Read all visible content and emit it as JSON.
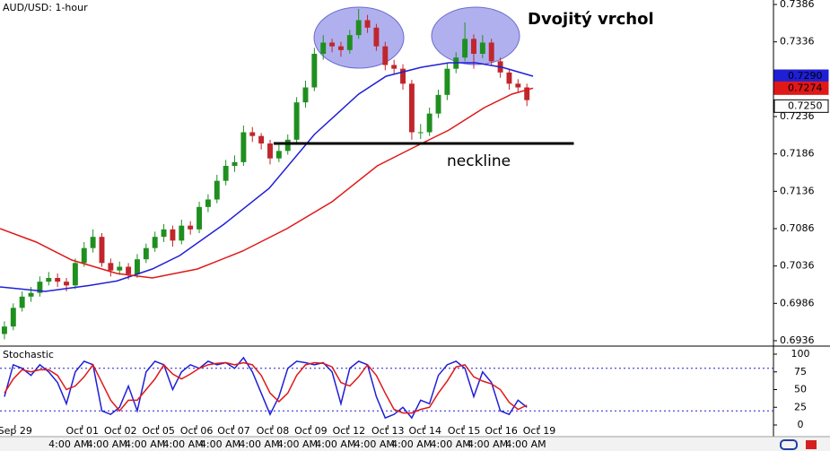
{
  "chart_data": [
    {
      "type": "candlestick",
      "title": "AUD/USD: 1-hour",
      "annotations": [
        "Dvojitý vrchol",
        "neckline"
      ],
      "neckline": {
        "x": [
          30.4,
          64.3
        ],
        "value": 0.72
      },
      "up_color": "#1f8f1f",
      "down_color": "#c0262b",
      "xlim": [
        -0.5,
        60.5
      ],
      "ylim": [
        0.6936,
        0.7386
      ],
      "yticks": [
        0.7386,
        0.7336,
        0.7236,
        0.7186,
        0.7136,
        0.7086,
        0.7036,
        0.6986,
        0.6936
      ],
      "xticks": [
        {
          "value": 1.2,
          "label": "Sep 29"
        },
        {
          "value": 8.8,
          "label": "Oct 01"
        },
        {
          "value": 13.1,
          "label": "Oct 02"
        },
        {
          "value": 17.4,
          "label": "Oct 05"
        },
        {
          "value": 21.7,
          "label": "Oct 06"
        },
        {
          "value": 25.9,
          "label": "Oct 07"
        },
        {
          "value": 30.3,
          "label": "Oct 08"
        },
        {
          "value": 34.6,
          "label": "Oct 09"
        },
        {
          "value": 38.9,
          "label": "Oct 12"
        },
        {
          "value": 43.3,
          "label": "Oct 13"
        },
        {
          "value": 47.5,
          "label": "Oct 14"
        },
        {
          "value": 51.9,
          "label": "Oct 15"
        },
        {
          "value": 56.1,
          "label": "Oct 16"
        },
        {
          "value": 60.4,
          "label": "Oct 19"
        }
      ],
      "bottom_labels": [
        "4:00 AM",
        "4:00 AM",
        "4:00 AM",
        "4:00 AM",
        "4:00 AM",
        "4:00 AM",
        "4:00 AM",
        "4:00 AM",
        "4:00 AM",
        "4:00 AM",
        "4:00 AM",
        "4:00 AM",
        "4:00 AM"
      ],
      "price_labels": [
        {
          "value": 0.729,
          "label": "0.7290",
          "color": "#1f1fd6"
        },
        {
          "value": 0.7274,
          "label": "0.7274",
          "color": "#e01818"
        },
        {
          "value": 0.725,
          "label": "0.7250",
          "color": "#000000"
        }
      ],
      "candles": [
        [
          0.6945,
          0.6962,
          0.6938,
          0.6955
        ],
        [
          0.6955,
          0.6986,
          0.695,
          0.698
        ],
        [
          0.698,
          0.7002,
          0.6975,
          0.6995
        ],
        [
          0.6995,
          0.7008,
          0.6988,
          0.7
        ],
        [
          0.7,
          0.7022,
          0.6995,
          0.7015
        ],
        [
          0.7015,
          0.7028,
          0.701,
          0.702
        ],
        [
          0.702,
          0.7026,
          0.7008,
          0.7015
        ],
        [
          0.7015,
          0.702,
          0.7002,
          0.701
        ],
        [
          0.701,
          0.7046,
          0.7005,
          0.704
        ],
        [
          0.704,
          0.7068,
          0.7035,
          0.706
        ],
        [
          0.706,
          0.7085,
          0.7054,
          0.7075
        ],
        [
          0.7075,
          0.708,
          0.7035,
          0.704
        ],
        [
          0.704,
          0.7046,
          0.7022,
          0.703
        ],
        [
          0.703,
          0.7042,
          0.7024,
          0.7035
        ],
        [
          0.7035,
          0.704,
          0.7018,
          0.7025
        ],
        [
          0.7025,
          0.7052,
          0.702,
          0.7045
        ],
        [
          0.7045,
          0.7066,
          0.704,
          0.706
        ],
        [
          0.706,
          0.7082,
          0.7055,
          0.7075
        ],
        [
          0.7075,
          0.7092,
          0.7068,
          0.7085
        ],
        [
          0.7085,
          0.709,
          0.7062,
          0.707
        ],
        [
          0.707,
          0.7098,
          0.7065,
          0.709
        ],
        [
          0.709,
          0.7096,
          0.7078,
          0.7085
        ],
        [
          0.7085,
          0.7122,
          0.708,
          0.7115
        ],
        [
          0.7115,
          0.7132,
          0.7108,
          0.7125
        ],
        [
          0.7125,
          0.7158,
          0.712,
          0.715
        ],
        [
          0.715,
          0.7178,
          0.7144,
          0.717
        ],
        [
          0.717,
          0.7184,
          0.7162,
          0.7175
        ],
        [
          0.7175,
          0.7224,
          0.717,
          0.7215
        ],
        [
          0.7215,
          0.7222,
          0.7202,
          0.721
        ],
        [
          0.721,
          0.7214,
          0.7192,
          0.72
        ],
        [
          0.72,
          0.7205,
          0.7172,
          0.718
        ],
        [
          0.718,
          0.7198,
          0.7175,
          0.719
        ],
        [
          0.719,
          0.7212,
          0.7185,
          0.7205
        ],
        [
          0.7205,
          0.7262,
          0.72,
          0.7255
        ],
        [
          0.7255,
          0.7284,
          0.7248,
          0.7275
        ],
        [
          0.7275,
          0.7328,
          0.727,
          0.732
        ],
        [
          0.732,
          0.7345,
          0.7312,
          0.7335
        ],
        [
          0.7335,
          0.734,
          0.7322,
          0.733
        ],
        [
          0.733,
          0.7336,
          0.7316,
          0.7325
        ],
        [
          0.7325,
          0.7352,
          0.732,
          0.7345
        ],
        [
          0.7345,
          0.738,
          0.734,
          0.7365
        ],
        [
          0.7365,
          0.7372,
          0.7348,
          0.7355
        ],
        [
          0.7355,
          0.736,
          0.7324,
          0.733
        ],
        [
          0.733,
          0.7336,
          0.7298,
          0.7305
        ],
        [
          0.7305,
          0.7312,
          0.7292,
          0.73
        ],
        [
          0.73,
          0.7306,
          0.7272,
          0.728
        ],
        [
          0.728,
          0.7285,
          0.7205,
          0.7215
        ],
        [
          0.7215,
          0.7226,
          0.7206,
          0.7215
        ],
        [
          0.7215,
          0.7248,
          0.721,
          0.724
        ],
        [
          0.724,
          0.7272,
          0.7234,
          0.7265
        ],
        [
          0.7265,
          0.7308,
          0.7258,
          0.73
        ],
        [
          0.73,
          0.7322,
          0.7294,
          0.7315
        ],
        [
          0.7315,
          0.7362,
          0.731,
          0.734
        ],
        [
          0.734,
          0.7346,
          0.73,
          0.732
        ],
        [
          0.732,
          0.7345,
          0.7314,
          0.7335
        ],
        [
          0.7335,
          0.734,
          0.7304,
          0.731
        ],
        [
          0.731,
          0.7315,
          0.7288,
          0.7295
        ],
        [
          0.7295,
          0.73,
          0.7272,
          0.728
        ],
        [
          0.728,
          0.7286,
          0.7268,
          0.7275
        ],
        [
          0.7275,
          0.728,
          0.725,
          0.7258
        ]
      ],
      "series": [
        {
          "color": "#1f1fd6",
          "x": [
            -0.5,
            4.6,
            9.6,
            12.7,
            16.7,
            19.8,
            24.8,
            29.9,
            35,
            40,
            43.1,
            47.1,
            50.2,
            53.2,
            56.2,
            59.7
          ],
          "values": [
            0.7008,
            0.7002,
            0.701,
            0.7016,
            0.7032,
            0.705,
            0.7092,
            0.714,
            0.7212,
            0.7266,
            0.729,
            0.7302,
            0.7308,
            0.7308,
            0.7302,
            0.729
          ]
        },
        {
          "color": "#e01818",
          "x": [
            -0.5,
            3.6,
            7.6,
            12.7,
            16.7,
            21.8,
            26.9,
            31.9,
            37,
            42.1,
            46.1,
            50.2,
            54.2,
            57.3,
            59.7
          ],
          "values": [
            0.7086,
            0.7068,
            0.7044,
            0.7026,
            0.702,
            0.7032,
            0.7056,
            0.7086,
            0.7122,
            0.717,
            0.7194,
            0.7218,
            0.7248,
            0.7266,
            0.7274
          ]
        }
      ]
    },
    {
      "type": "stochastic",
      "title": "Stochastic",
      "xlim": [
        -0.5,
        60.5
      ],
      "ylim": [
        0,
        100
      ],
      "yticks": [
        100,
        75,
        50,
        25,
        0
      ],
      "levels": [
        80,
        20
      ],
      "level_color": "#1f1fd6",
      "series": [
        {
          "color": "#1f1fd6",
          "values": [
            40,
            85,
            80,
            70,
            85,
            75,
            60,
            30,
            75,
            90,
            85,
            20,
            15,
            25,
            55,
            20,
            75,
            90,
            85,
            50,
            75,
            85,
            80,
            90,
            85,
            88,
            80,
            95,
            75,
            45,
            15,
            40,
            80,
            90,
            88,
            85,
            88,
            75,
            30,
            80,
            90,
            85,
            40,
            10,
            15,
            25,
            10,
            35,
            30,
            70,
            85,
            90,
            80,
            40,
            75,
            60,
            20,
            15,
            35,
            25
          ]
        },
        {
          "color": "#e01818",
          "values": [
            45,
            65,
            78,
            75,
            78,
            78,
            70,
            50,
            55,
            68,
            85,
            60,
            35,
            20,
            35,
            35,
            50,
            65,
            85,
            72,
            65,
            72,
            80,
            85,
            87,
            88,
            85,
            88,
            85,
            70,
            45,
            33,
            45,
            70,
            85,
            88,
            87,
            82,
            60,
            55,
            68,
            85,
            70,
            45,
            22,
            17,
            17,
            22,
            25,
            45,
            62,
            82,
            85,
            68,
            62,
            58,
            50,
            32,
            22,
            28
          ]
        }
      ]
    }
  ]
}
